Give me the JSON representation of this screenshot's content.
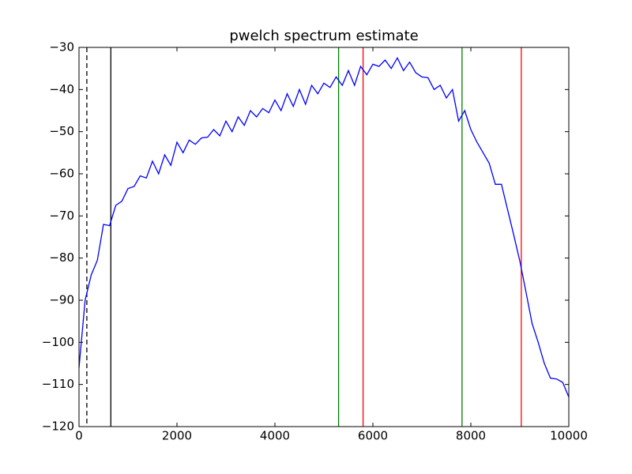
{
  "chart_data": {
    "type": "line",
    "title": "pwelch spectrum estimate",
    "x": [
      0,
      125,
      250,
      375,
      500,
      625,
      750,
      875,
      1000,
      1125,
      1250,
      1375,
      1500,
      1625,
      1750,
      1875,
      2000,
      2125,
      2250,
      2375,
      2500,
      2625,
      2750,
      2875,
      3000,
      3125,
      3250,
      3375,
      3500,
      3625,
      3750,
      3875,
      4000,
      4125,
      4250,
      4375,
      4500,
      4625,
      4750,
      4875,
      5000,
      5125,
      5250,
      5375,
      5500,
      5625,
      5750,
      5875,
      6000,
      6125,
      6250,
      6375,
      6500,
      6625,
      6750,
      6875,
      7000,
      7125,
      7250,
      7375,
      7500,
      7625,
      7750,
      7875,
      8000,
      8125,
      8250,
      8375,
      8500,
      8625,
      8750,
      8875,
      9000,
      9125,
      9250,
      9375,
      9500,
      9625,
      9750,
      9875,
      10000
    ],
    "series": [
      {
        "color": "#0000ff",
        "values": [
          -106,
          -90,
          -84,
          -80.5,
          -72,
          -72.3,
          -67.5,
          -66.5,
          -63.5,
          -63,
          -60.5,
          -61,
          -57,
          -60,
          -55.5,
          -58,
          -52.5,
          -55,
          -52,
          -53,
          -51.5,
          -51.3,
          -49.5,
          -51,
          -47.5,
          -50,
          -46.5,
          -48.5,
          -45,
          -46.5,
          -44.5,
          -45.5,
          -42.5,
          -45,
          -41,
          -44,
          -40,
          -43.5,
          -39,
          -41,
          -38.5,
          -39.5,
          -37,
          -39,
          -35.5,
          -39,
          -34.5,
          -36.5,
          -34,
          -34.5,
          -33,
          -35,
          -32.5,
          -35.5,
          -33.5,
          -36,
          -37,
          -37.2,
          -40,
          -39,
          -42,
          -40,
          -47.5,
          -45,
          -49.5,
          -52.5,
          -55,
          -57.5,
          -62.5,
          -62.5,
          -68.5,
          -74.5,
          -80.7,
          -88,
          -95.5,
          -100,
          -105,
          -108.5,
          -108.7,
          -109.5,
          -113
        ]
      }
    ],
    "vlines": [
      {
        "x": 160,
        "color": "#000000",
        "dashed": true
      },
      {
        "x": 650,
        "color": "#000000"
      },
      {
        "x": 5300,
        "color": "#008000"
      },
      {
        "x": 5800,
        "color": "#ff0000"
      },
      {
        "x": 7820,
        "color": "#008000"
      },
      {
        "x": 9030,
        "color": "#ff0000"
      }
    ],
    "xlim": [
      0,
      10000
    ],
    "xticks": [
      0,
      2000,
      4000,
      6000,
      8000,
      10000
    ],
    "ylim": [
      -120,
      -30
    ],
    "yticks": [
      {
        "value": -120,
        "label": "−120"
      },
      {
        "value": -110,
        "label": "−110"
      },
      {
        "value": -100,
        "label": "−100"
      },
      {
        "value": -90,
        "label": "−90"
      },
      {
        "value": -80,
        "label": "−80"
      },
      {
        "value": -70,
        "label": "−70"
      },
      {
        "value": -60,
        "label": "−60"
      },
      {
        "value": -50,
        "label": "−50"
      },
      {
        "value": -40,
        "label": "−40"
      },
      {
        "value": -30,
        "label": "−30"
      }
    ],
    "grid": false
  }
}
